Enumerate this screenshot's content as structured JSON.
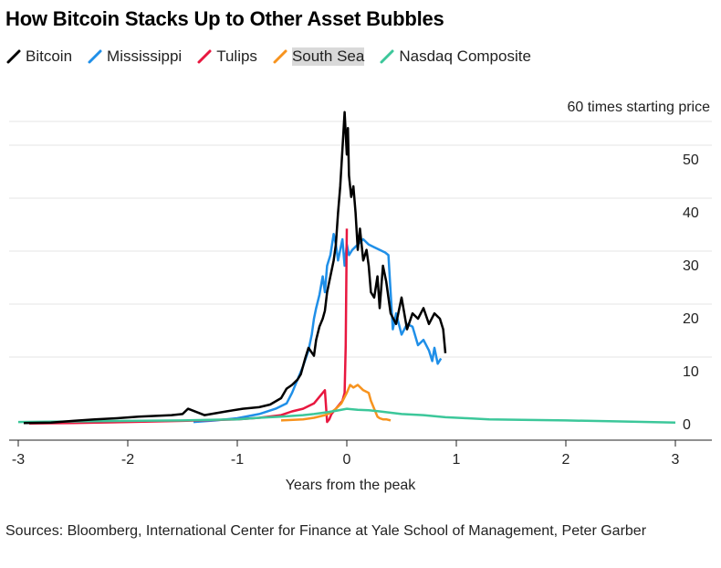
{
  "title": "How Bitcoin Stacks Up to Other Asset Bubbles",
  "sources": "Sources: Bloomberg, International Center for Finance at Yale School of Management, Peter Garber",
  "legend": [
    {
      "name": "Bitcoin",
      "color": "#000000",
      "highlight": false
    },
    {
      "name": "Mississippi",
      "color": "#1f8fe8",
      "highlight": false
    },
    {
      "name": "Tulips",
      "color": "#e8173f",
      "highlight": false
    },
    {
      "name": "South Sea",
      "color": "#f7931e",
      "highlight": true
    },
    {
      "name": "Nasdaq Composite",
      "color": "#3cc79a",
      "highlight": false
    }
  ],
  "chart_data": {
    "type": "line",
    "xlabel": "Years from the peak",
    "ylabel": "60 times starting price",
    "xlim": [
      -3.05,
      3.3
    ],
    "ylim": [
      -1.5,
      60
    ],
    "xticks": [
      -3,
      -2,
      -1,
      0,
      1,
      2,
      3
    ],
    "xtick_labels": [
      "-3",
      "-2",
      "-1",
      "0",
      "1",
      "2",
      "3"
    ],
    "yticks": [
      0,
      10,
      20,
      30,
      40,
      50
    ],
    "ytick_labels": [
      "0",
      "10",
      "20",
      "30",
      "40",
      "50"
    ],
    "grid": "horizontal",
    "series": [
      {
        "name": "Bitcoin",
        "color": "#000000",
        "x": [
          -2.95,
          -2.7,
          -2.5,
          -2.3,
          -2.1,
          -1.9,
          -1.6,
          -1.5,
          -1.45,
          -1.3,
          -1.1,
          -0.95,
          -0.8,
          -0.7,
          -0.6,
          -0.55,
          -0.5,
          -0.45,
          -0.42,
          -0.38,
          -0.35,
          -0.3,
          -0.28,
          -0.25,
          -0.22,
          -0.2,
          -0.18,
          -0.15,
          -0.12,
          -0.1,
          -0.08,
          -0.06,
          -0.04,
          -0.02,
          0.0,
          0.01,
          0.02,
          0.04,
          0.06,
          0.08,
          0.1,
          0.12,
          0.15,
          0.18,
          0.2,
          0.22,
          0.25,
          0.28,
          0.3,
          0.33,
          0.36,
          0.4,
          0.45,
          0.5,
          0.55,
          0.6,
          0.65,
          0.7,
          0.75,
          0.8,
          0.85,
          0.88,
          0.9
        ],
        "y": [
          0.3,
          0.4,
          0.7,
          1.0,
          1.2,
          1.5,
          1.8,
          2.0,
          3.0,
          1.8,
          2.5,
          3.0,
          3.3,
          3.8,
          5.0,
          6.8,
          7.5,
          8.5,
          9.5,
          12.5,
          14.5,
          13.0,
          16.0,
          18.5,
          20.0,
          21.5,
          25.0,
          28.0,
          31.0,
          34.0,
          40.0,
          45.0,
          52.0,
          59.0,
          51.0,
          56.0,
          47.0,
          43.0,
          45.0,
          40.0,
          33.0,
          37.0,
          31.0,
          33.0,
          30.0,
          25.0,
          24.0,
          28.0,
          22.0,
          30.0,
          27.0,
          21.0,
          19.0,
          24.0,
          18.0,
          21.0,
          20.0,
          22.0,
          19.0,
          21.0,
          20.0,
          18.0,
          13.5
        ]
      },
      {
        "name": "Mississippi",
        "color": "#1f8fe8",
        "x": [
          -1.4,
          -1.2,
          -1.0,
          -0.8,
          -0.65,
          -0.55,
          -0.5,
          -0.45,
          -0.4,
          -0.35,
          -0.32,
          -0.3,
          -0.28,
          -0.25,
          -0.22,
          -0.2,
          -0.18,
          -0.15,
          -0.12,
          -0.1,
          -0.08,
          -0.06,
          -0.04,
          -0.02,
          0.0,
          0.02,
          0.05,
          0.1,
          0.15,
          0.2,
          0.25,
          0.3,
          0.35,
          0.38,
          0.4,
          0.42,
          0.45,
          0.5,
          0.55,
          0.6,
          0.65,
          0.7,
          0.75,
          0.78,
          0.8,
          0.83,
          0.86
        ],
        "y": [
          0.5,
          0.8,
          1.2,
          2.0,
          3.0,
          4.0,
          6.0,
          8.5,
          11.0,
          14.0,
          17.0,
          20.0,
          22.0,
          24.5,
          28.0,
          25.0,
          30.0,
          32.0,
          36.0,
          34.0,
          31.0,
          33.0,
          35.0,
          30.0,
          34.0,
          32.0,
          33.0,
          34.0,
          35.0,
          34.0,
          33.5,
          33.0,
          32.5,
          32.0,
          25.0,
          18.0,
          21.0,
          17.0,
          19.0,
          18.5,
          15.0,
          16.0,
          14.0,
          12.0,
          14.5,
          11.5,
          12.5
        ]
      },
      {
        "name": "Tulips",
        "color": "#e8173f",
        "x": [
          -2.9,
          -2.5,
          -2.0,
          -1.5,
          -1.0,
          -0.8,
          -0.6,
          -0.5,
          -0.4,
          -0.3,
          -0.2,
          -0.18,
          -0.16,
          -0.14,
          -0.12,
          -0.1,
          -0.08,
          -0.06,
          -0.04,
          -0.02,
          -0.01,
          0.0
        ],
        "y": [
          0.2,
          0.3,
          0.5,
          0.7,
          1.0,
          1.3,
          1.8,
          2.5,
          3.0,
          4.0,
          6.5,
          0.5,
          1.0,
          2.0,
          2.5,
          3.0,
          3.5,
          4.0,
          4.5,
          6.0,
          15.0,
          37.0
        ]
      },
      {
        "name": "South Sea",
        "color": "#f7931e",
        "x": [
          -0.6,
          -0.4,
          -0.3,
          -0.2,
          -0.15,
          -0.1,
          -0.05,
          0.0,
          0.03,
          0.06,
          0.1,
          0.15,
          0.2,
          0.22,
          0.25,
          0.28,
          0.3,
          0.33,
          0.36,
          0.4
        ],
        "y": [
          0.8,
          1.0,
          1.3,
          1.8,
          2.2,
          3.0,
          4.0,
          6.0,
          7.5,
          7.0,
          7.5,
          6.5,
          6.0,
          4.5,
          3.0,
          1.5,
          1.2,
          1.0,
          1.0,
          0.8
        ]
      },
      {
        "name": "Nasdaq Composite",
        "color": "#3cc79a",
        "x": [
          -3.0,
          -2.5,
          -2.0,
          -1.5,
          -1.0,
          -0.8,
          -0.6,
          -0.4,
          -0.3,
          -0.2,
          -0.1,
          0.0,
          0.1,
          0.2,
          0.3,
          0.5,
          0.7,
          0.9,
          1.1,
          1.3,
          1.6,
          2.0,
          2.5,
          3.0
        ],
        "y": [
          0.5,
          0.6,
          0.7,
          0.8,
          1.0,
          1.3,
          1.5,
          1.8,
          2.0,
          2.3,
          2.6,
          3.0,
          2.8,
          2.7,
          2.5,
          2.0,
          1.8,
          1.4,
          1.2,
          1.0,
          0.9,
          0.8,
          0.6,
          0.4
        ]
      }
    ]
  }
}
